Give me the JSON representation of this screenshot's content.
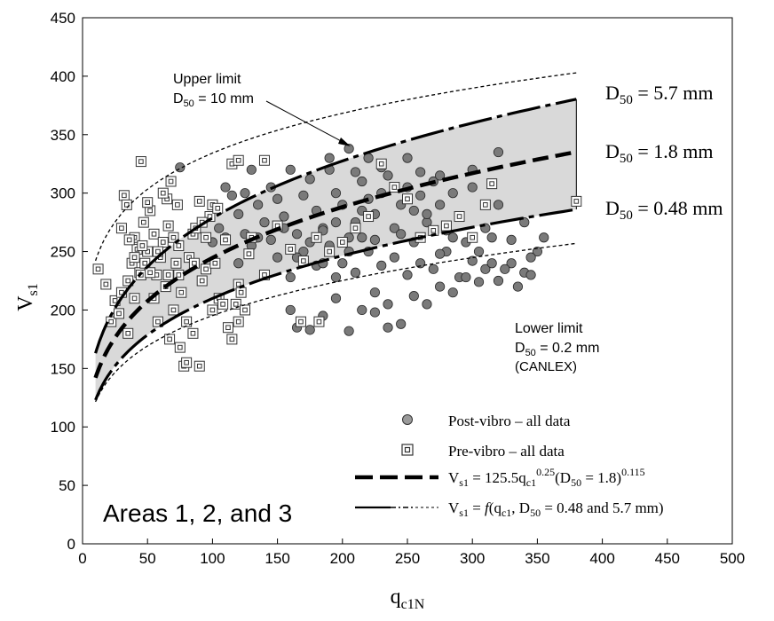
{
  "chart_data": {
    "type": "scatter",
    "title": "",
    "xlabel_main": "q",
    "xlabel_sub": "c1N",
    "ylabel_main": "V",
    "ylabel_sub": "s1",
    "xlim": [
      0,
      500
    ],
    "ylim": [
      0,
      450
    ],
    "x_ticks": [
      0,
      50,
      100,
      150,
      200,
      250,
      300,
      350,
      400,
      450,
      500
    ],
    "y_ticks": [
      0,
      50,
      100,
      150,
      200,
      250,
      300,
      350,
      400,
      450
    ],
    "grid": false,
    "colors": {
      "post_vibro_fill": "#7a7a7a",
      "band_fill": "#d9d9d9",
      "line": "#000000"
    },
    "curves": [
      {
        "name": "upper-limit",
        "style": "short-dash",
        "A": 175.4,
        "B": 0.14
      },
      {
        "name": "d50-5.7",
        "style": "long-dash-dot",
        "A": 95.3,
        "B": 0.233
      },
      {
        "name": "d50-1.8",
        "style": "heavy-dash",
        "A": 82.5,
        "B": 0.236
      },
      {
        "name": "d50-0.48",
        "style": "long-dash-dot",
        "A": 72.1,
        "B": 0.232
      },
      {
        "name": "lower-limit",
        "style": "short-dash",
        "A": 75.6,
        "B": 0.206
      }
    ],
    "curve_x_range": [
      10,
      380
    ],
    "band_between": [
      "d50-5.7",
      "d50-0.48"
    ],
    "series": [
      {
        "name": "Post-vibro – all data",
        "marker": "circle",
        "points": [
          [
            75,
            322
          ],
          [
            110,
            305
          ],
          [
            115,
            298
          ],
          [
            120,
            282
          ],
          [
            125,
            300
          ],
          [
            130,
            320
          ],
          [
            135,
            290
          ],
          [
            140,
            275
          ],
          [
            145,
            305
          ],
          [
            150,
            295
          ],
          [
            155,
            280
          ],
          [
            160,
            320
          ],
          [
            165,
            265
          ],
          [
            170,
            298
          ],
          [
            175,
            312
          ],
          [
            180,
            285
          ],
          [
            185,
            270
          ],
          [
            190,
            320
          ],
          [
            195,
            300
          ],
          [
            200,
            290
          ],
          [
            205,
            338
          ],
          [
            210,
            275
          ],
          [
            215,
            310
          ],
          [
            220,
            295
          ],
          [
            225,
            282
          ],
          [
            230,
            300
          ],
          [
            235,
            315
          ],
          [
            240,
            270
          ],
          [
            245,
            290
          ],
          [
            250,
            305
          ],
          [
            255,
            285
          ],
          [
            260,
            298
          ],
          [
            265,
            275
          ],
          [
            270,
            310
          ],
          [
            275,
            290
          ],
          [
            280,
            268
          ],
          [
            285,
            300
          ],
          [
            290,
            280
          ],
          [
            300,
            305
          ],
          [
            310,
            270
          ],
          [
            320,
            290
          ],
          [
            330,
            260
          ],
          [
            340,
            275
          ],
          [
            350,
            250
          ],
          [
            355,
            262
          ],
          [
            120,
            240
          ],
          [
            130,
            255
          ],
          [
            140,
            230
          ],
          [
            150,
            245
          ],
          [
            160,
            228
          ],
          [
            170,
            250
          ],
          [
            180,
            238
          ],
          [
            190,
            255
          ],
          [
            200,
            240
          ],
          [
            210,
            232
          ],
          [
            220,
            250
          ],
          [
            230,
            238
          ],
          [
            240,
            245
          ],
          [
            250,
            230
          ],
          [
            260,
            240
          ],
          [
            270,
            235
          ],
          [
            280,
            250
          ],
          [
            290,
            228
          ],
          [
            300,
            242
          ],
          [
            310,
            235
          ],
          [
            320,
            225
          ],
          [
            330,
            240
          ],
          [
            340,
            232
          ],
          [
            345,
            245
          ],
          [
            160,
            200
          ],
          [
            165,
            185
          ],
          [
            175,
            183
          ],
          [
            185,
            195
          ],
          [
            195,
            210
          ],
          [
            205,
            182
          ],
          [
            215,
            200
          ],
          [
            225,
            198
          ],
          [
            235,
            185
          ],
          [
            245,
            188
          ],
          [
            225,
            215
          ],
          [
            235,
            205
          ],
          [
            255,
            212
          ],
          [
            265,
            205
          ],
          [
            275,
            220
          ],
          [
            285,
            215
          ],
          [
            295,
            228
          ],
          [
            305,
            224
          ],
          [
            315,
            240
          ],
          [
            325,
            235
          ],
          [
            335,
            220
          ],
          [
            345,
            230
          ],
          [
            185,
            268
          ],
          [
            195,
            275
          ],
          [
            205,
            262
          ],
          [
            215,
            285
          ],
          [
            225,
            260
          ],
          [
            245,
            265
          ],
          [
            255,
            258
          ],
          [
            265,
            282
          ],
          [
            275,
            248
          ],
          [
            285,
            262
          ],
          [
            295,
            258
          ],
          [
            305,
            250
          ],
          [
            315,
            262
          ],
          [
            190,
            330
          ],
          [
            220,
            330
          ],
          [
            250,
            330
          ],
          [
            275,
            315
          ],
          [
            300,
            320
          ],
          [
            320,
            335
          ],
          [
            210,
            318
          ],
          [
            230,
            322
          ],
          [
            260,
            318
          ],
          [
            145,
            260
          ],
          [
            155,
            270
          ],
          [
            165,
            245
          ],
          [
            175,
            258
          ],
          [
            185,
            240
          ],
          [
            195,
            228
          ],
          [
            205,
            250
          ],
          [
            215,
            262
          ],
          [
            135,
            262
          ],
          [
            125,
            265
          ],
          [
            95,
            235
          ],
          [
            100,
            258
          ],
          [
            105,
            270
          ],
          [
            110,
            262
          ]
        ]
      },
      {
        "name": "Pre-vibro – all data",
        "marker": "square",
        "points": [
          [
            12,
            235
          ],
          [
            18,
            222
          ],
          [
            22,
            190
          ],
          [
            25,
            208
          ],
          [
            28,
            197
          ],
          [
            30,
            215
          ],
          [
            32,
            298
          ],
          [
            35,
            180
          ],
          [
            38,
            240
          ],
          [
            40,
            262
          ],
          [
            42,
            252
          ],
          [
            44,
            232
          ],
          [
            45,
            327
          ],
          [
            47,
            275
          ],
          [
            48,
            240
          ],
          [
            50,
            250
          ],
          [
            52,
            285
          ],
          [
            55,
            265
          ],
          [
            57,
            230
          ],
          [
            60,
            245
          ],
          [
            62,
            258
          ],
          [
            64,
            220
          ],
          [
            65,
            295
          ],
          [
            67,
            175
          ],
          [
            68,
            310
          ],
          [
            70,
            200
          ],
          [
            72,
            240
          ],
          [
            74,
            255
          ],
          [
            75,
            168
          ],
          [
            76,
            215
          ],
          [
            78,
            152
          ],
          [
            80,
            190
          ],
          [
            82,
            245
          ],
          [
            85,
            265
          ],
          [
            87,
            270
          ],
          [
            90,
            152
          ],
          [
            92,
            225
          ],
          [
            95,
            235
          ],
          [
            98,
            280
          ],
          [
            100,
            290
          ],
          [
            102,
            240
          ],
          [
            105,
            210
          ],
          [
            108,
            205
          ],
          [
            110,
            260
          ],
          [
            112,
            185
          ],
          [
            115,
            175
          ],
          [
            118,
            205
          ],
          [
            120,
            222
          ],
          [
            122,
            215
          ],
          [
            125,
            200
          ],
          [
            128,
            248
          ],
          [
            130,
            262
          ],
          [
            30,
            270
          ],
          [
            35,
            225
          ],
          [
            40,
            210
          ],
          [
            45,
            230
          ],
          [
            50,
            292
          ],
          [
            55,
            210
          ],
          [
            58,
            190
          ],
          [
            62,
            300
          ],
          [
            66,
            230
          ],
          [
            70,
            262
          ],
          [
            73,
            290
          ],
          [
            80,
            155
          ],
          [
            85,
            180
          ],
          [
            90,
            293
          ],
          [
            95,
            262
          ],
          [
            100,
            200
          ],
          [
            115,
            325
          ],
          [
            120,
            190
          ],
          [
            140,
            230
          ],
          [
            150,
            272
          ],
          [
            160,
            252
          ],
          [
            170,
            242
          ],
          [
            180,
            262
          ],
          [
            190,
            250
          ],
          [
            200,
            258
          ],
          [
            210,
            270
          ],
          [
            220,
            280
          ],
          [
            230,
            325
          ],
          [
            240,
            305
          ],
          [
            250,
            295
          ],
          [
            260,
            262
          ],
          [
            270,
            268
          ],
          [
            280,
            272
          ],
          [
            290,
            280
          ],
          [
            300,
            262
          ],
          [
            310,
            290
          ],
          [
            315,
            308
          ],
          [
            380,
            293
          ],
          [
            168,
            190
          ],
          [
            182,
            190
          ],
          [
            140,
            328
          ],
          [
            120,
            328
          ],
          [
            104,
            287
          ],
          [
            92,
            275
          ],
          [
            86,
            240
          ],
          [
            74,
            230
          ],
          [
            66,
            272
          ],
          [
            58,
            250
          ],
          [
            52,
            232
          ],
          [
            46,
            255
          ],
          [
            40,
            245
          ],
          [
            36,
            260
          ],
          [
            34,
            290
          ]
        ]
      }
    ],
    "annotations": {
      "upper_main": "Upper limit",
      "upper_sub_prefix": "D",
      "upper_sub_sub": "50",
      "upper_sub_suffix": " = 10 mm",
      "lower_main": "Lower limit",
      "lower_sub_prefix": "D",
      "lower_sub_sub": "50",
      "lower_sub_suffix": " = 0.2 mm",
      "lower_note": "(CANLEX)",
      "d57_prefix": "D",
      "d57_sub": "50",
      "d57_suffix": " = 5.7 mm",
      "d18_prefix": "D",
      "d18_sub": "50",
      "d18_suffix": " = 1.8 mm",
      "d048_prefix": "D",
      "d048_sub": "50",
      "d048_suffix": " = 0.48 mm",
      "area_label": "Areas 1, 2, and 3"
    },
    "legend": {
      "position": "bottom-right",
      "post_label": "Post-vibro – all data",
      "pre_label": "Pre-vibro – all data",
      "eq1_v": "V",
      "eq1_vsub": "s1",
      "eq1_a": " = 125.5q",
      "eq1_qsub": "c1",
      "eq1_exp1": "0.25",
      "eq1_b": "(D",
      "eq1_dsub": "50",
      "eq1_c": " = 1.8)",
      "eq1_exp2": "0.115",
      "eq2_v": "V",
      "eq2_vsub": "s1",
      "eq2_a": " = ",
      "eq2_f": "f",
      "eq2_b": "(q",
      "eq2_qsub": "c1",
      "eq2_c": ", D",
      "eq2_dsub": "50",
      "eq2_d": " = 0.48 and 5.7 mm)"
    }
  }
}
